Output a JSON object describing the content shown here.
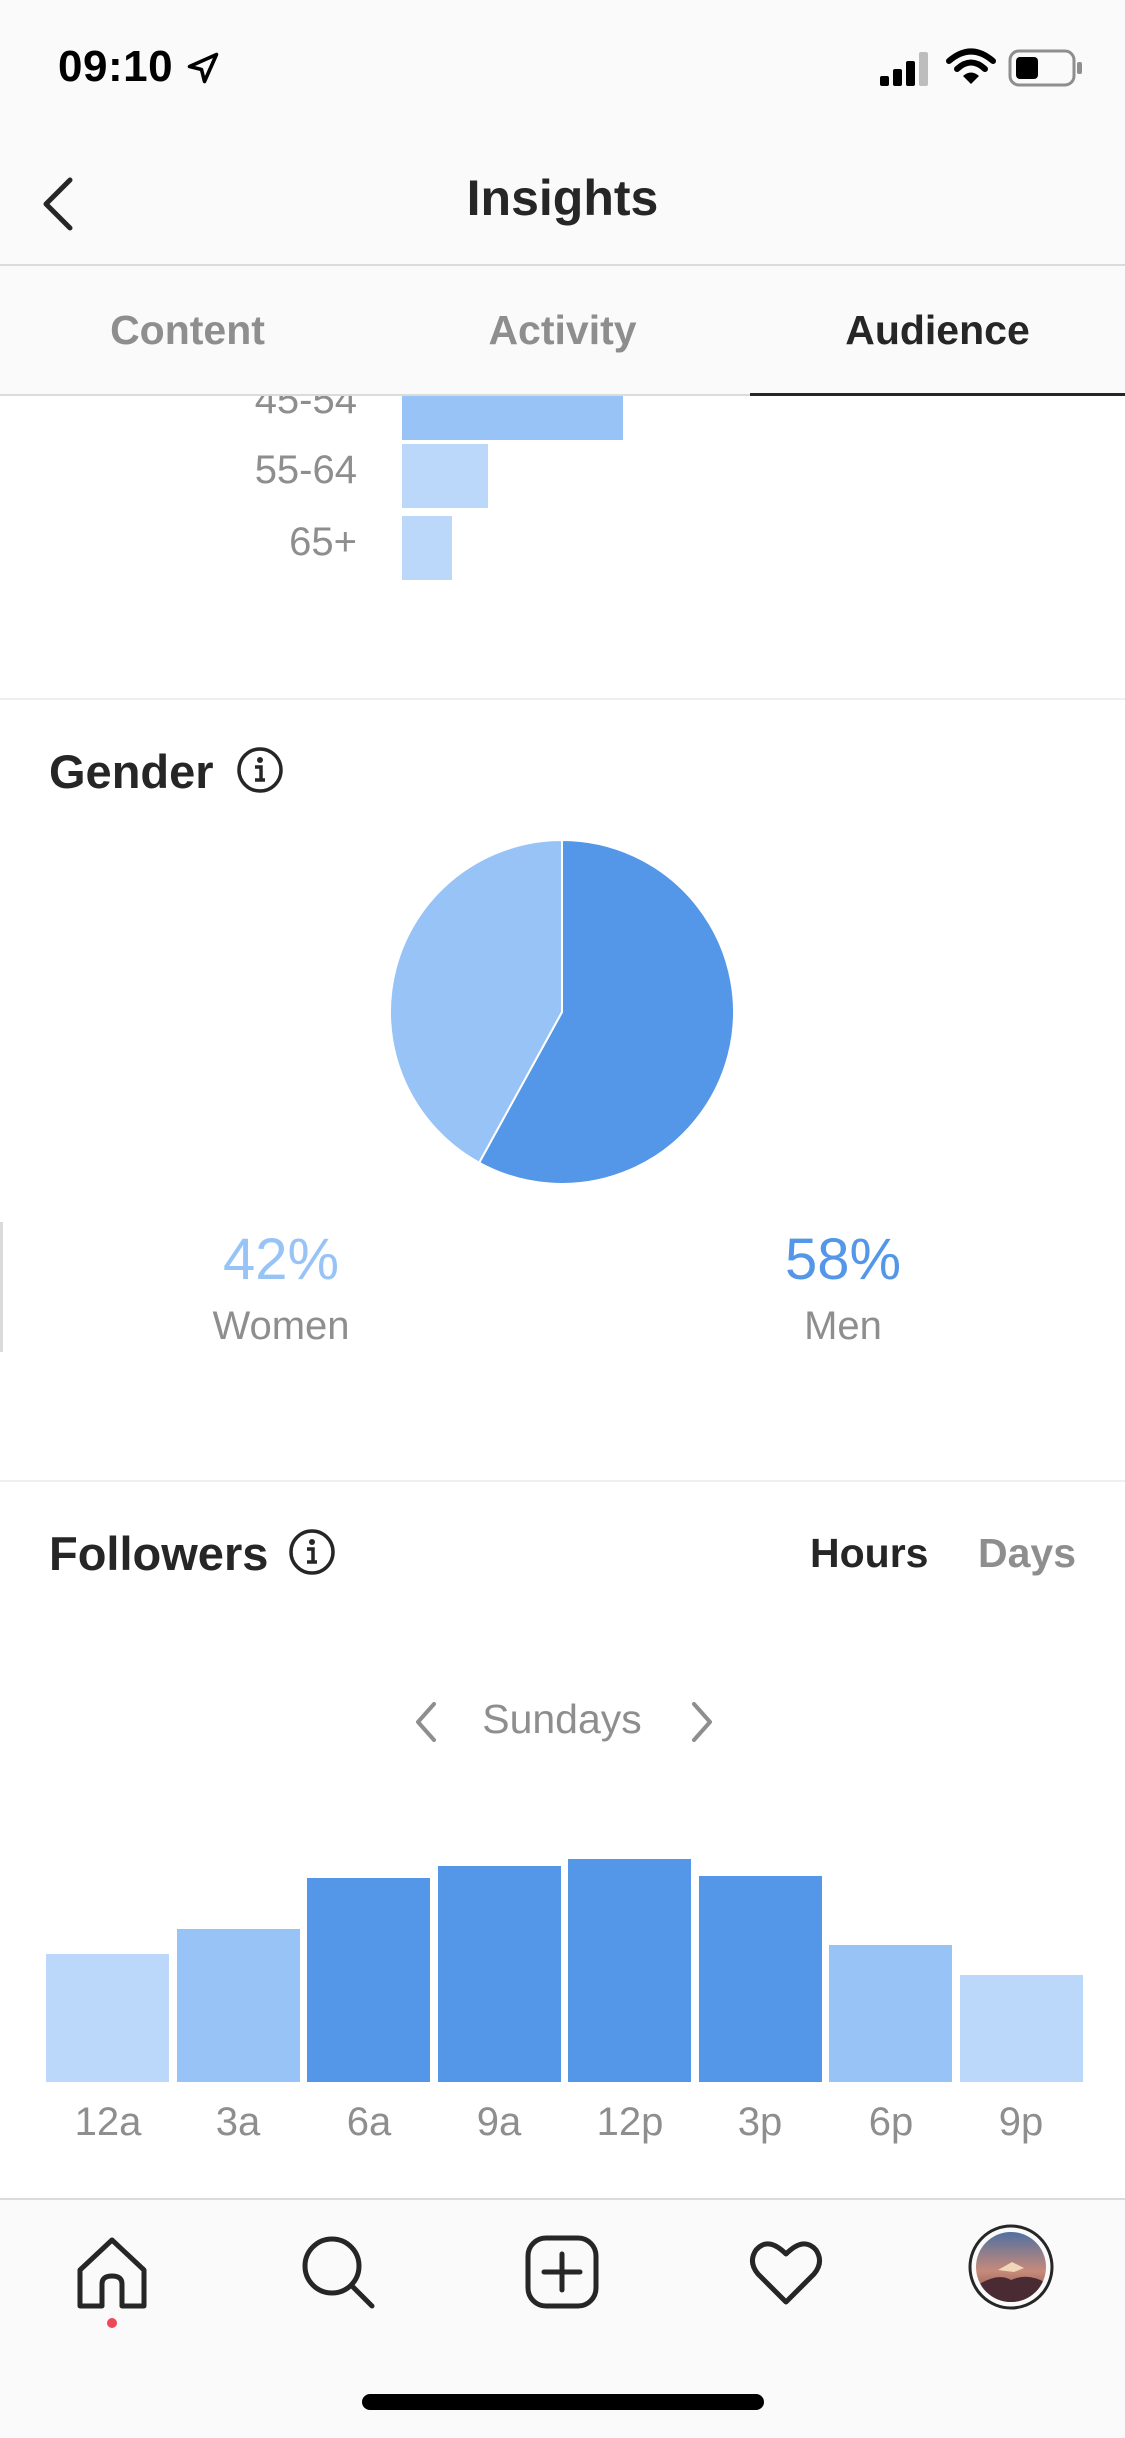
{
  "status_bar": {
    "time": "09:10"
  },
  "header": {
    "title": "Insights"
  },
  "tabs": [
    {
      "label": "Content",
      "active": false
    },
    {
      "label": "Activity",
      "active": false
    },
    {
      "label": "Audience",
      "active": true
    }
  ],
  "age_ranges": {
    "items": [
      {
        "label": "45-54",
        "value": 0.49
      },
      {
        "label": "55-64",
        "value": 0.19
      },
      {
        "label": "65+",
        "value": 0.11
      }
    ]
  },
  "gender": {
    "title": "Gender",
    "women": {
      "percent": "42%",
      "label": "Women",
      "value": 42,
      "color": "#97c3f7"
    },
    "men": {
      "percent": "58%",
      "label": "Men",
      "value": 58,
      "color": "#5497e8"
    }
  },
  "followers": {
    "title": "Followers",
    "toggle": {
      "hours": "Hours",
      "days": "Days",
      "selected": "Hours"
    },
    "day": "Sundays",
    "chart_data": {
      "type": "bar",
      "categories": [
        "12a",
        "3a",
        "6a",
        "9a",
        "12p",
        "3p",
        "6p",
        "9p"
      ],
      "values": [
        55,
        66,
        88,
        93,
        96,
        89,
        59,
        46
      ],
      "ylim": [
        0,
        100
      ],
      "bar_colors": [
        "#bbd7fa",
        "#97c3f7",
        "#5497e8",
        "#5497e8",
        "#5497e8",
        "#5497e8",
        "#97c3f7",
        "#bbd7fa"
      ]
    }
  },
  "colors": {
    "primary_blue": "#5497e8",
    "light_blue": "#97c3f7",
    "pale_blue": "#bbd7fa",
    "muted_text": "#8e8e8e"
  }
}
